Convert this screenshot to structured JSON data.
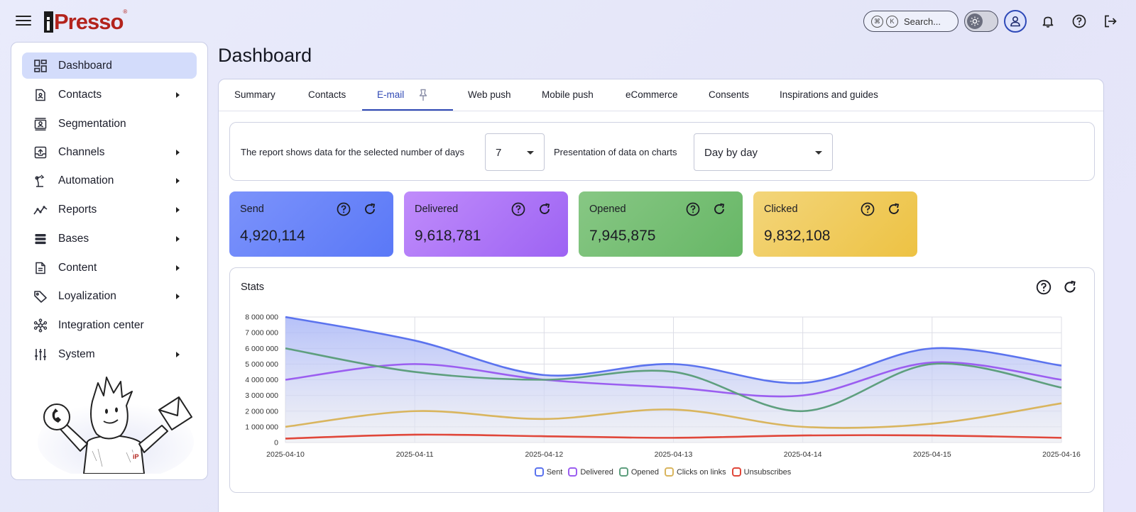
{
  "app": {
    "logo_text": "Presso",
    "logo_i": "i",
    "logo_reg": "®"
  },
  "topbar": {
    "search_k1": "⌘",
    "search_k2": "K",
    "search_placeholder": "Search..."
  },
  "sidebar": {
    "items": [
      {
        "label": "Dashboard",
        "icon": "dashboard-icon",
        "active": true,
        "has_arrow": false
      },
      {
        "label": "Contacts",
        "icon": "contacts-icon",
        "active": false,
        "has_arrow": true
      },
      {
        "label": "Segmentation",
        "icon": "segmentation-icon",
        "active": false,
        "has_arrow": false
      },
      {
        "label": "Channels",
        "icon": "channels-icon",
        "active": false,
        "has_arrow": true
      },
      {
        "label": "Automation",
        "icon": "automation-icon",
        "active": false,
        "has_arrow": true
      },
      {
        "label": "Reports",
        "icon": "reports-icon",
        "active": false,
        "has_arrow": true
      },
      {
        "label": "Bases",
        "icon": "bases-icon",
        "active": false,
        "has_arrow": true
      },
      {
        "label": "Content",
        "icon": "content-icon",
        "active": false,
        "has_arrow": true
      },
      {
        "label": "Loyalization",
        "icon": "loyalization-icon",
        "active": false,
        "has_arrow": true
      },
      {
        "label": "Integration center",
        "icon": "integration-icon",
        "active": false,
        "has_arrow": false
      },
      {
        "label": "System",
        "icon": "system-icon",
        "active": false,
        "has_arrow": true
      }
    ],
    "mascot_badge": "iP"
  },
  "page": {
    "title": "Dashboard"
  },
  "tabs": [
    {
      "label": "Summary",
      "active": false
    },
    {
      "label": "Contacts",
      "active": false
    },
    {
      "label": "E-mail",
      "active": true
    },
    {
      "label": "Web push",
      "active": false
    },
    {
      "label": "Mobile push",
      "active": false
    },
    {
      "label": "eCommerce",
      "active": false
    },
    {
      "label": "Consents",
      "active": false
    },
    {
      "label": "Inspirations and guides",
      "active": false
    }
  ],
  "filters": {
    "days_label": "The report shows data for the selected number of days",
    "days_value": "7",
    "presentation_label": "Presentation of data on charts",
    "presentation_value": "Day by day"
  },
  "cards": [
    {
      "title": "Send",
      "value": "4,920,114",
      "color_from": "#7c93fb",
      "color_to": "#5a78f7"
    },
    {
      "title": "Delivered",
      "value": "9,618,781",
      "color_from": "#c08cfb",
      "color_to": "#9d63f3"
    },
    {
      "title": "Opened",
      "value": "7,945,875",
      "color_from": "#87c784",
      "color_to": "#67b766"
    },
    {
      "title": "Clicked",
      "value": "9,832,108",
      "color_from": "#f3d57a",
      "color_to": "#edc243"
    }
  ],
  "stats": {
    "title": "Stats"
  },
  "chart_data": {
    "type": "line",
    "x": [
      "2025-04-10",
      "2025-04-11",
      "2025-04-12",
      "2025-04-13",
      "2025-04-14",
      "2025-04-15",
      "2025-04-16"
    ],
    "y_ticks": [
      "0",
      "1 000 000",
      "2 000 000",
      "3 000 000",
      "4 000 000",
      "5 000 000",
      "6 000 000",
      "7 000 000",
      "8 000 000"
    ],
    "ylim": [
      0,
      8000000
    ],
    "grid": true,
    "legend_position": "bottom",
    "series": [
      {
        "name": "Sent",
        "color": "#5b73ee",
        "fill": true,
        "values": [
          8000000,
          6500000,
          4300000,
          5000000,
          3800000,
          6000000,
          4900000
        ]
      },
      {
        "name": "Delivered",
        "color": "#9b5ef0",
        "fill": false,
        "values": [
          4000000,
          5000000,
          4000000,
          3500000,
          3000000,
          5100000,
          4000000
        ]
      },
      {
        "name": "Opened",
        "color": "#5e9f7e",
        "fill": false,
        "values": [
          6000000,
          4500000,
          4000000,
          4500000,
          2000000,
          5000000,
          3500000
        ]
      },
      {
        "name": "Clicks on links",
        "color": "#d9b55e",
        "fill": false,
        "values": [
          1000000,
          2000000,
          1500000,
          2100000,
          1000000,
          1200000,
          2500000
        ]
      },
      {
        "name": "Unsubscribes",
        "color": "#e0473a",
        "fill": false,
        "values": [
          250000,
          500000,
          400000,
          300000,
          450000,
          450000,
          300000
        ]
      }
    ]
  }
}
